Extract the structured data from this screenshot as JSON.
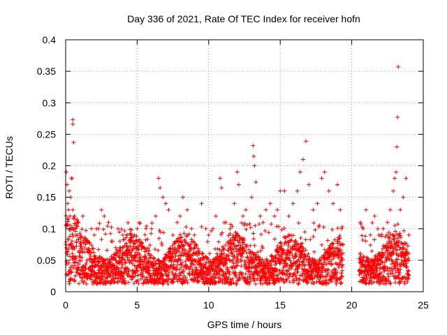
{
  "chart_data": {
    "type": "scatter",
    "title": "Day 336 of 2021, Rate Of TEC Index for receiver hofn",
    "xlabel": "GPS time / hours",
    "ylabel": "ROTI / TECUs",
    "xlim": [
      0,
      25
    ],
    "ylim": [
      0,
      0.4
    ],
    "x_ticks": [
      0,
      5,
      10,
      15,
      20,
      25
    ],
    "y_ticks": [
      0,
      0.05,
      0.1,
      0.15,
      0.2,
      0.25,
      0.3,
      0.35,
      0.4
    ],
    "x_tick_labels": [
      "0",
      "5",
      "10",
      "15",
      "20",
      "25"
    ],
    "y_tick_labels": [
      "0",
      "0.05",
      "0.1",
      "0.15",
      "0.2",
      "0.25",
      "0.3",
      "0.35",
      "0.4"
    ],
    "grid": true,
    "marker": "+",
    "marker_color": "#ff0000",
    "data_gap_hours": [
      19.4,
      20.5
    ],
    "series": [
      {
        "points": [
          [
            0.05,
            0.19
          ],
          [
            0.1,
            0.17
          ],
          [
            0.15,
            0.14
          ],
          [
            0.2,
            0.13
          ],
          [
            0.25,
            0.16
          ],
          [
            0.3,
            0.12
          ],
          [
            0.35,
            0.15
          ],
          [
            0.4,
            0.18
          ],
          [
            0.45,
            0.18
          ],
          [
            0.5,
            0.13
          ],
          [
            0.5,
            0.273
          ],
          [
            0.5,
            0.266
          ],
          [
            0.55,
            0.237
          ],
          [
            0.6,
            0.12
          ],
          [
            0.8,
            0.11
          ],
          [
            1.0,
            0.09
          ],
          [
            1.2,
            0.12
          ],
          [
            1.5,
            0.08
          ],
          [
            1.8,
            0.1
          ],
          [
            2.0,
            0.09
          ],
          [
            2.3,
            0.1
          ],
          [
            2.5,
            0.13
          ],
          [
            2.7,
            0.12
          ],
          [
            3.0,
            0.11
          ],
          [
            3.2,
            0.08
          ],
          [
            3.5,
            0.07
          ],
          [
            3.8,
            0.08
          ],
          [
            4.0,
            0.09
          ],
          [
            4.3,
            0.09
          ],
          [
            4.6,
            0.08
          ],
          [
            4.8,
            0.09
          ],
          [
            5.0,
            0.1
          ],
          [
            5.5,
            0.07
          ],
          [
            6.0,
            0.1
          ],
          [
            6.3,
            0.12
          ],
          [
            6.5,
            0.18
          ],
          [
            6.6,
            0.165
          ],
          [
            6.8,
            0.15
          ],
          [
            7.0,
            0.14
          ],
          [
            7.2,
            0.13
          ],
          [
            7.5,
            0.09
          ],
          [
            7.8,
            0.11
          ],
          [
            8.0,
            0.12
          ],
          [
            8.2,
            0.15
          ],
          [
            8.5,
            0.13
          ],
          [
            8.8,
            0.1
          ],
          [
            9.0,
            0.09
          ],
          [
            9.5,
            0.14
          ],
          [
            9.8,
            0.1
          ],
          [
            10.0,
            0.09
          ],
          [
            10.3,
            0.1
          ],
          [
            10.5,
            0.12
          ],
          [
            10.8,
            0.18
          ],
          [
            10.9,
            0.165
          ],
          [
            11.2,
            0.11
          ],
          [
            11.5,
            0.1
          ],
          [
            11.8,
            0.14
          ],
          [
            12.0,
            0.19
          ],
          [
            12.1,
            0.17
          ],
          [
            12.4,
            0.12
          ],
          [
            12.6,
            0.13
          ],
          [
            13.0,
            0.15
          ],
          [
            13.1,
            0.232
          ],
          [
            13.15,
            0.215
          ],
          [
            13.2,
            0.2
          ],
          [
            13.3,
            0.174
          ],
          [
            13.6,
            0.12
          ],
          [
            13.8,
            0.11
          ],
          [
            14.0,
            0.13
          ],
          [
            14.3,
            0.14
          ],
          [
            14.6,
            0.12
          ],
          [
            14.8,
            0.13
          ],
          [
            15.0,
            0.16
          ],
          [
            15.3,
            0.16
          ],
          [
            15.6,
            0.12
          ],
          [
            15.9,
            0.14
          ],
          [
            16.2,
            0.16
          ],
          [
            16.4,
            0.19
          ],
          [
            16.6,
            0.21
          ],
          [
            16.8,
            0.239
          ],
          [
            17.0,
            0.17
          ],
          [
            17.3,
            0.13
          ],
          [
            17.6,
            0.14
          ],
          [
            17.9,
            0.18
          ],
          [
            18.1,
            0.19
          ],
          [
            18.4,
            0.16
          ],
          [
            18.7,
            0.14
          ],
          [
            19.0,
            0.17
          ],
          [
            19.2,
            0.13
          ],
          [
            19.3,
            0.1
          ],
          [
            20.6,
            0.11
          ],
          [
            20.8,
            0.1
          ],
          [
            21.0,
            0.13
          ],
          [
            21.3,
            0.09
          ],
          [
            21.6,
            0.12
          ],
          [
            21.9,
            0.09
          ],
          [
            22.2,
            0.1
          ],
          [
            22.5,
            0.11
          ],
          [
            22.7,
            0.13
          ],
          [
            22.9,
            0.16
          ],
          [
            23.0,
            0.18
          ],
          [
            23.1,
            0.19
          ],
          [
            23.15,
            0.23
          ],
          [
            23.2,
            0.277
          ],
          [
            23.25,
            0.357
          ],
          [
            23.4,
            0.13
          ],
          [
            23.6,
            0.15
          ],
          [
            23.8,
            0.18
          ],
          [
            24.0,
            0.09
          ]
        ]
      }
    ]
  }
}
